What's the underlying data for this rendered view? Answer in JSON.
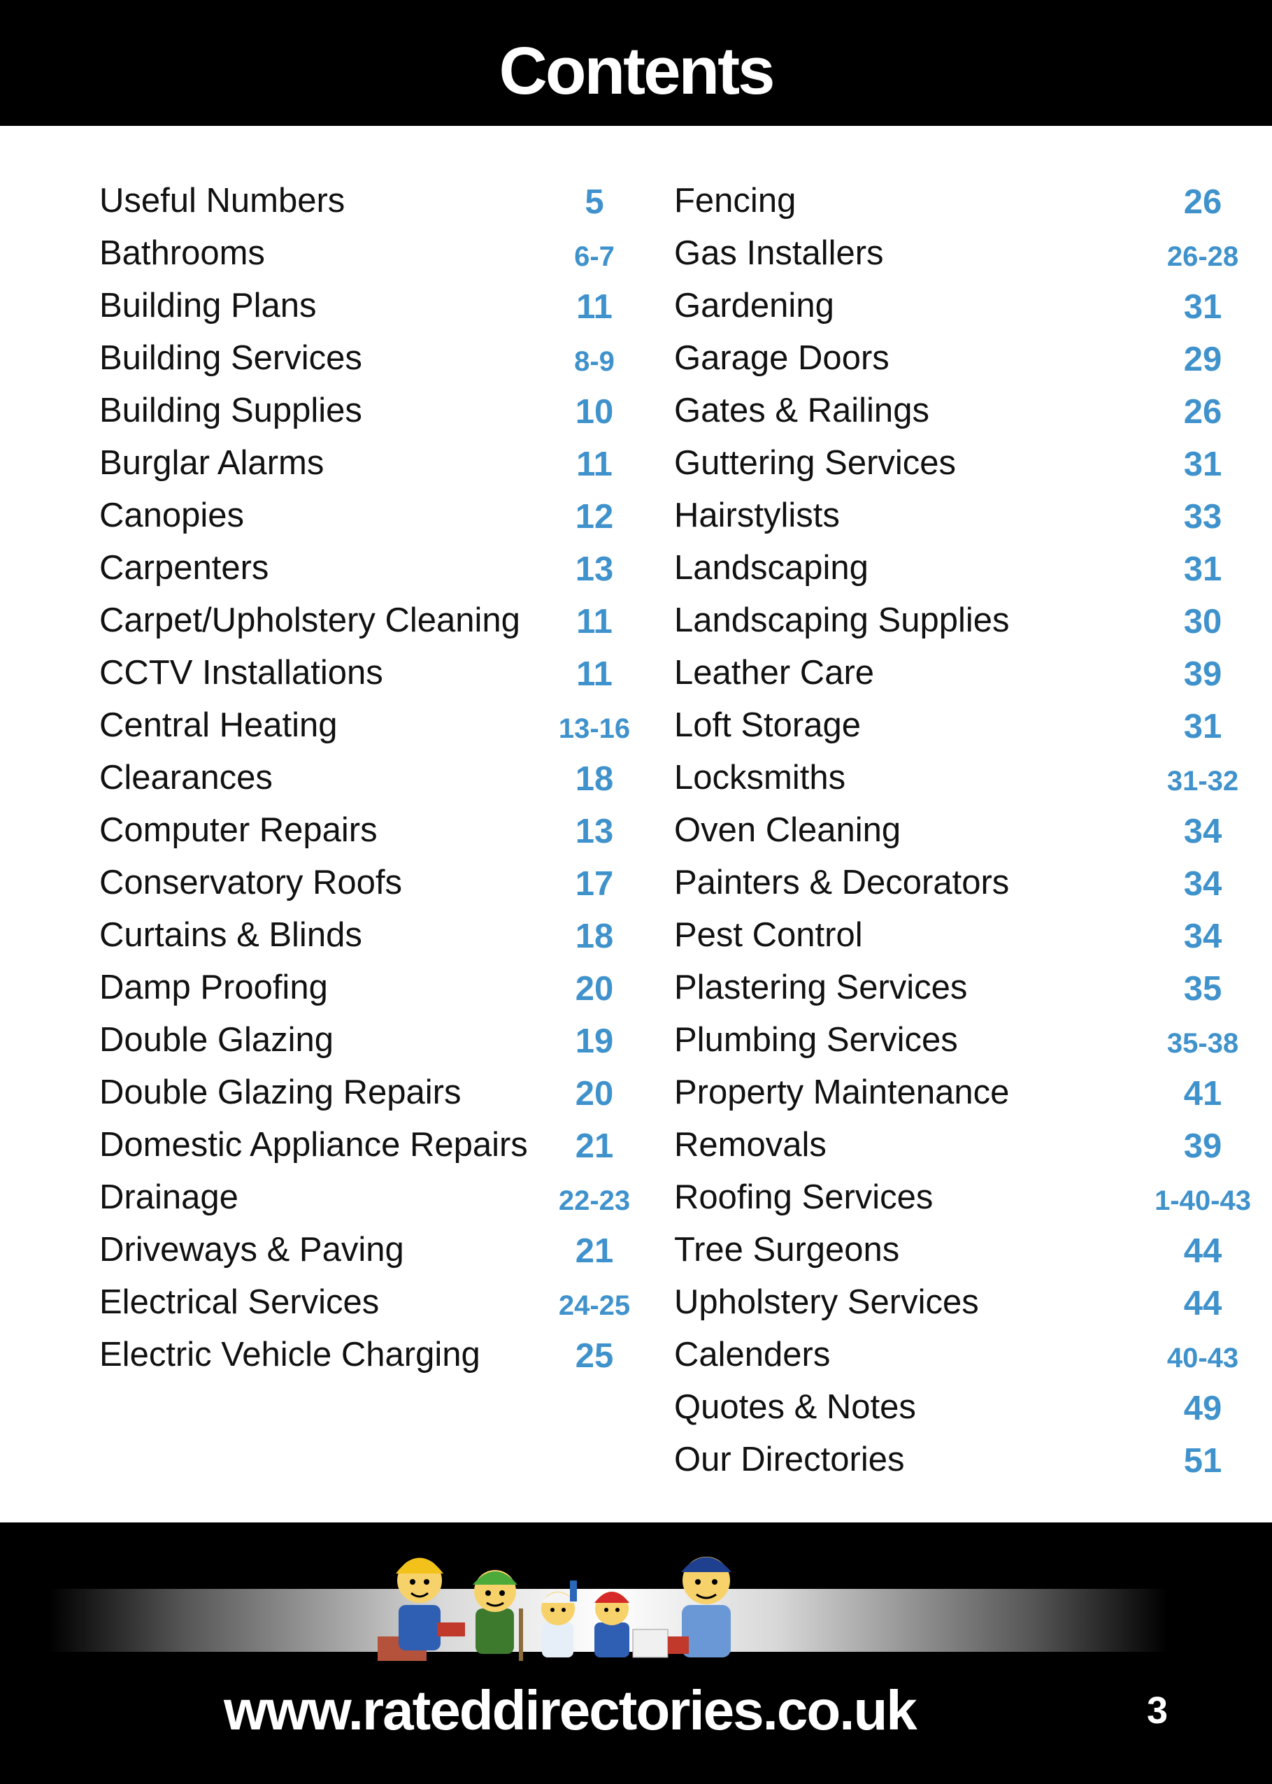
{
  "header": {
    "title": "Contents"
  },
  "left_column": [
    {
      "label": "Useful Numbers",
      "page": "5"
    },
    {
      "label": "Bathrooms",
      "page": "6-7"
    },
    {
      "label": "Building Plans",
      "page": "11"
    },
    {
      "label": "Building Services",
      "page": "8-9"
    },
    {
      "label": "Building Supplies",
      "page": "10"
    },
    {
      "label": "Burglar Alarms",
      "page": "11"
    },
    {
      "label": "Canopies",
      "page": "12"
    },
    {
      "label": "Carpenters",
      "page": "13"
    },
    {
      "label": "Carpet/Upholstery Cleaning",
      "page": "11"
    },
    {
      "label": "CCTV Installations",
      "page": "11"
    },
    {
      "label": "Central Heating",
      "page": "13-16"
    },
    {
      "label": "Clearances",
      "page": "18"
    },
    {
      "label": "Computer Repairs",
      "page": "13"
    },
    {
      "label": "Conservatory Roofs",
      "page": "17"
    },
    {
      "label": "Curtains & Blinds",
      "page": "18"
    },
    {
      "label": "Damp Proofing",
      "page": "20"
    },
    {
      "label": "Double Glazing",
      "page": "19"
    },
    {
      "label": "Double Glazing Repairs",
      "page": "20"
    },
    {
      "label": "Domestic Appliance Repairs",
      "page": "21"
    },
    {
      "label": "Drainage",
      "page": "22-23"
    },
    {
      "label": "Driveways & Paving",
      "page": "21"
    },
    {
      "label": "Electrical Services",
      "page": "24-25"
    },
    {
      "label": "Electric Vehicle Charging",
      "page": "25"
    }
  ],
  "right_column": [
    {
      "label": "Fencing",
      "page": "26"
    },
    {
      "label": "Gas Installers",
      "page": "26-28"
    },
    {
      "label": "Gardening",
      "page": "31"
    },
    {
      "label": "Garage Doors",
      "page": "29"
    },
    {
      "label": "Gates & Railings",
      "page": "26"
    },
    {
      "label": "Guttering Services",
      "page": "31"
    },
    {
      "label": "Hairstylists",
      "page": "33"
    },
    {
      "label": "Landscaping",
      "page": "31"
    },
    {
      "label": "Landscaping Supplies",
      "page": "30"
    },
    {
      "label": "Leather Care",
      "page": "39"
    },
    {
      "label": "Loft Storage",
      "page": "31"
    },
    {
      "label": "Locksmiths",
      "page": "31-32"
    },
    {
      "label": "Oven Cleaning",
      "page": "34"
    },
    {
      "label": "Painters & Decorators",
      "page": "34"
    },
    {
      "label": "Pest Control",
      "page": "34"
    },
    {
      "label": "Plastering Services",
      "page": "35"
    },
    {
      "label": "Plumbing Services",
      "page": "35-38"
    },
    {
      "label": "Property Maintenance",
      "page": "41"
    },
    {
      "label": "Removals",
      "page": "39"
    },
    {
      "label": "Roofing Services",
      "page": "1-40-43"
    },
    {
      "label": "Tree Surgeons",
      "page": "44"
    },
    {
      "label": "Upholstery Services",
      "page": "44"
    },
    {
      "label": "Calenders",
      "page": "40-43"
    },
    {
      "label": "Quotes & Notes",
      "page": "49"
    },
    {
      "label": "Our Directories",
      "page": "51"
    }
  ],
  "footer": {
    "url": "www.rateddirectories.co.uk",
    "page_number": "3"
  },
  "colors": {
    "page_number_blue": "#3f92cc",
    "band_black": "#000000"
  }
}
